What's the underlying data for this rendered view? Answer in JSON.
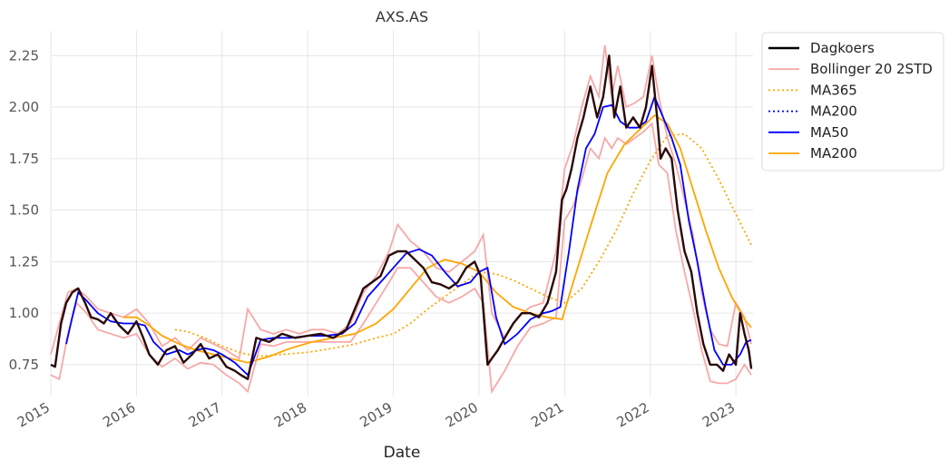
{
  "chart_data": {
    "type": "line",
    "title": "AXS.AS",
    "xlabel": "Date",
    "ylabel": "",
    "xlim": [
      2015.0,
      2023.2
    ],
    "ylim": [
      0.6,
      2.37
    ],
    "x_ticks": [
      {
        "value": 2015,
        "label": "2015"
      },
      {
        "value": 2016,
        "label": "2016"
      },
      {
        "value": 2017,
        "label": "2017"
      },
      {
        "value": 2018,
        "label": "2018"
      },
      {
        "value": 2019,
        "label": "2019"
      },
      {
        "value": 2020,
        "label": "2020"
      },
      {
        "value": 2021,
        "label": "2021"
      },
      {
        "value": 2022,
        "label": "2022"
      },
      {
        "value": 2023,
        "label": "2023"
      }
    ],
    "y_ticks": [
      {
        "value": 0.75,
        "label": "0.75"
      },
      {
        "value": 1.0,
        "label": "1.00"
      },
      {
        "value": 1.25,
        "label": "1.25"
      },
      {
        "value": 1.5,
        "label": "1.50"
      },
      {
        "value": 1.75,
        "label": "1.75"
      },
      {
        "value": 2.0,
        "label": "2.00"
      },
      {
        "value": 2.25,
        "label": "2.25"
      }
    ],
    "grid": true,
    "legend_position": "outside top-right",
    "series": [
      {
        "name": "Dagkoers",
        "color": "#000000",
        "style": "solid",
        "key": "close",
        "x": [
          2015.0,
          2015.05,
          2015.12,
          2015.18,
          2015.25,
          2015.32,
          2015.4,
          2015.47,
          2015.55,
          2015.62,
          2015.7,
          2015.8,
          2015.9,
          2016.0,
          2016.08,
          2016.15,
          2016.25,
          2016.35,
          2016.45,
          2016.55,
          2016.65,
          2016.75,
          2016.85,
          2016.95,
          2017.05,
          2017.15,
          2017.22,
          2017.3,
          2017.4,
          2017.55,
          2017.7,
          2017.85,
          2018.0,
          2018.15,
          2018.3,
          2018.45,
          2018.55,
          2018.65,
          2018.75,
          2018.85,
          2018.95,
          2019.05,
          2019.15,
          2019.25,
          2019.35,
          2019.45,
          2019.55,
          2019.65,
          2019.75,
          2019.85,
          2019.95,
          2020.02,
          2020.1,
          2020.15,
          2020.22,
          2020.3,
          2020.4,
          2020.5,
          2020.6,
          2020.7,
          2020.8,
          2020.9,
          2020.97,
          2021.02,
          2021.08,
          2021.15,
          2021.22,
          2021.3,
          2021.38,
          2021.45,
          2021.52,
          2021.58,
          2021.65,
          2021.72,
          2021.8,
          2021.88,
          2021.95,
          2022.02,
          2022.08,
          2022.12,
          2022.18,
          2022.25,
          2022.32,
          2022.4,
          2022.48,
          2022.55,
          2022.62,
          2022.7,
          2022.78,
          2022.85,
          2022.92,
          2023.0,
          2023.05,
          2023.1,
          2023.15,
          2023.18
        ],
        "values": [
          0.75,
          0.74,
          0.95,
          1.05,
          1.1,
          1.12,
          1.05,
          0.98,
          0.97,
          0.95,
          1.0,
          0.94,
          0.9,
          0.96,
          0.88,
          0.8,
          0.75,
          0.82,
          0.84,
          0.76,
          0.8,
          0.85,
          0.78,
          0.8,
          0.74,
          0.72,
          0.7,
          0.68,
          0.88,
          0.86,
          0.9,
          0.88,
          0.89,
          0.9,
          0.88,
          0.92,
          1.02,
          1.12,
          1.15,
          1.18,
          1.28,
          1.3,
          1.3,
          1.26,
          1.22,
          1.15,
          1.14,
          1.12,
          1.15,
          1.22,
          1.25,
          1.18,
          0.75,
          0.78,
          0.82,
          0.88,
          0.95,
          1.0,
          1.0,
          0.98,
          1.05,
          1.2,
          1.55,
          1.6,
          1.7,
          1.85,
          1.95,
          2.1,
          1.95,
          2.05,
          2.25,
          1.95,
          2.1,
          1.9,
          1.95,
          1.9,
          2.0,
          2.2,
          1.95,
          1.75,
          1.8,
          1.75,
          1.5,
          1.3,
          1.2,
          1.0,
          0.85,
          0.75,
          0.75,
          0.72,
          0.8,
          0.75,
          1.0,
          0.9,
          0.82,
          0.73
        ]
      },
      {
        "name": "Bollinger 20 2STD",
        "color": "#f7a8a8",
        "style": "solid",
        "key": "bollinger",
        "upper": {
          "x": [
            2015.0,
            2015.1,
            2015.2,
            2015.3,
            2015.42,
            2015.55,
            2015.7,
            2015.85,
            2016.0,
            2016.15,
            2016.3,
            2016.45,
            2016.6,
            2016.75,
            2016.9,
            2017.05,
            2017.2,
            2017.3,
            2017.45,
            2017.6,
            2017.75,
            2017.9,
            2018.05,
            2018.2,
            2018.35,
            2018.5,
            2018.65,
            2018.8,
            2018.95,
            2019.05,
            2019.2,
            2019.35,
            2019.5,
            2019.65,
            2019.8,
            2019.95,
            2020.05,
            2020.15,
            2020.3,
            2020.45,
            2020.6,
            2020.75,
            2020.9,
            2021.0,
            2021.1,
            2021.2,
            2021.3,
            2021.4,
            2021.47,
            2021.55,
            2021.62,
            2021.72,
            2021.82,
            2021.92,
            2022.02,
            2022.1,
            2022.2,
            2022.3,
            2022.4,
            2022.5,
            2022.6,
            2022.7,
            2022.8,
            2022.9,
            2023.0,
            2023.1,
            2023.18
          ],
          "values": [
            0.8,
            0.95,
            1.1,
            1.12,
            1.08,
            1.02,
            1.0,
            0.98,
            1.02,
            0.95,
            0.84,
            0.88,
            0.82,
            0.88,
            0.85,
            0.82,
            0.78,
            1.02,
            0.92,
            0.9,
            0.92,
            0.9,
            0.92,
            0.92,
            0.9,
            0.95,
            1.1,
            1.18,
            1.3,
            1.43,
            1.35,
            1.3,
            1.22,
            1.2,
            1.25,
            1.3,
            1.38,
            1.0,
            0.88,
            0.98,
            1.03,
            1.05,
            1.3,
            1.7,
            1.82,
            2.0,
            2.15,
            2.05,
            2.3,
            2.05,
            2.2,
            2.0,
            2.02,
            2.05,
            2.25,
            2.05,
            1.85,
            1.72,
            1.55,
            1.38,
            1.1,
            0.92,
            0.85,
            0.84,
            1.05,
            0.98,
            0.85
          ]
        },
        "lower": {
          "x": [
            2015.0,
            2015.1,
            2015.2,
            2015.3,
            2015.42,
            2015.55,
            2015.7,
            2015.85,
            2016.0,
            2016.15,
            2016.3,
            2016.45,
            2016.6,
            2016.75,
            2016.9,
            2017.05,
            2017.2,
            2017.3,
            2017.45,
            2017.6,
            2017.75,
            2017.9,
            2018.05,
            2018.2,
            2018.35,
            2018.5,
            2018.65,
            2018.8,
            2018.95,
            2019.05,
            2019.2,
            2019.35,
            2019.5,
            2019.65,
            2019.8,
            2019.95,
            2020.05,
            2020.15,
            2020.3,
            2020.45,
            2020.6,
            2020.75,
            2020.9,
            2021.0,
            2021.1,
            2021.2,
            2021.3,
            2021.4,
            2021.47,
            2021.55,
            2021.62,
            2021.72,
            2021.82,
            2021.92,
            2022.02,
            2022.1,
            2022.2,
            2022.3,
            2022.4,
            2022.5,
            2022.6,
            2022.7,
            2022.8,
            2022.9,
            2023.0,
            2023.1,
            2023.18
          ],
          "values": [
            0.7,
            0.68,
            0.9,
            1.05,
            1.0,
            0.92,
            0.9,
            0.88,
            0.9,
            0.8,
            0.74,
            0.78,
            0.73,
            0.76,
            0.75,
            0.7,
            0.66,
            0.62,
            0.85,
            0.84,
            0.86,
            0.86,
            0.86,
            0.86,
            0.86,
            0.86,
            0.95,
            1.05,
            1.15,
            1.22,
            1.22,
            1.15,
            1.08,
            1.05,
            1.08,
            1.12,
            1.05,
            0.62,
            0.72,
            0.84,
            0.93,
            0.95,
            0.98,
            1.45,
            1.52,
            1.65,
            1.8,
            1.75,
            1.85,
            1.8,
            1.85,
            1.82,
            1.85,
            1.88,
            1.92,
            1.72,
            1.68,
            1.4,
            1.2,
            1.02,
            0.82,
            0.67,
            0.66,
            0.66,
            0.68,
            0.75,
            0.7
          ]
        }
      },
      {
        "name": "MA365",
        "color": "#ffa500",
        "style": "dotted",
        "key": "ma365",
        "x": [
          2016.45,
          2016.6,
          2016.8,
          2017.0,
          2017.2,
          2017.4,
          2017.7,
          2018.0,
          2018.3,
          2018.55,
          2018.8,
          2019.0,
          2019.2,
          2019.4,
          2019.6,
          2019.8,
          2020.0,
          2020.2,
          2020.4,
          2020.6,
          2020.8,
          2021.0,
          2021.2,
          2021.4,
          2021.6,
          2021.8,
          2022.0,
          2022.2,
          2022.4,
          2022.6,
          2022.8,
          2023.0,
          2023.18
        ],
        "values": [
          0.92,
          0.91,
          0.88,
          0.84,
          0.81,
          0.79,
          0.8,
          0.81,
          0.83,
          0.85,
          0.88,
          0.9,
          0.95,
          1.02,
          1.08,
          1.14,
          1.2,
          1.19,
          1.16,
          1.12,
          1.08,
          1.05,
          1.12,
          1.25,
          1.4,
          1.58,
          1.74,
          1.86,
          1.87,
          1.8,
          1.65,
          1.48,
          1.33
        ]
      },
      {
        "name": "MA200",
        "color": "#0000ff",
        "style": "dotted",
        "key": "ma200_dotted",
        "x": [],
        "values": []
      },
      {
        "name": "MA50",
        "color": "#0000ff",
        "style": "solid",
        "key": "ma50",
        "x": [
          2015.18,
          2015.25,
          2015.32,
          2015.42,
          2015.55,
          2015.7,
          2015.85,
          2016.0,
          2016.1,
          2016.2,
          2016.35,
          2016.5,
          2016.6,
          2016.7,
          2016.8,
          2016.9,
          2017.0,
          2017.15,
          2017.3,
          2017.45,
          2017.6,
          2017.8,
          2018.0,
          2018.2,
          2018.4,
          2018.55,
          2018.7,
          2018.85,
          2019.0,
          2019.15,
          2019.3,
          2019.45,
          2019.6,
          2019.75,
          2019.9,
          2020.0,
          2020.1,
          2020.2,
          2020.3,
          2020.45,
          2020.6,
          2020.75,
          2020.85,
          2020.95,
          2021.05,
          2021.15,
          2021.25,
          2021.35,
          2021.45,
          2021.55,
          2021.65,
          2021.75,
          2021.85,
          2021.95,
          2022.05,
          2022.15,
          2022.25,
          2022.35,
          2022.45,
          2022.55,
          2022.65,
          2022.75,
          2022.85,
          2022.95,
          2023.05,
          2023.12,
          2023.18
        ],
        "values": [
          0.85,
          0.98,
          1.1,
          1.06,
          1.0,
          0.96,
          0.95,
          0.95,
          0.94,
          0.86,
          0.8,
          0.82,
          0.8,
          0.82,
          0.83,
          0.82,
          0.8,
          0.76,
          0.7,
          0.87,
          0.88,
          0.88,
          0.89,
          0.89,
          0.9,
          0.95,
          1.08,
          1.15,
          1.22,
          1.29,
          1.31,
          1.28,
          1.2,
          1.13,
          1.15,
          1.2,
          1.22,
          0.98,
          0.85,
          0.9,
          0.97,
          1.0,
          1.01,
          1.03,
          1.3,
          1.6,
          1.8,
          1.87,
          2.0,
          2.01,
          1.93,
          1.9,
          1.9,
          1.93,
          2.05,
          1.95,
          1.85,
          1.72,
          1.45,
          1.25,
          1.02,
          0.82,
          0.75,
          0.75,
          0.8,
          0.86,
          0.87
        ]
      },
      {
        "name": "MA200",
        "color": "#ffa500",
        "style": "solid",
        "key": "ma200",
        "x": [
          2015.85,
          2016.0,
          2016.15,
          2016.3,
          2016.5,
          2016.7,
          2016.9,
          2017.1,
          2017.3,
          2017.55,
          2017.8,
          2018.05,
          2018.3,
          2018.55,
          2018.8,
          2019.0,
          2019.2,
          2019.4,
          2019.6,
          2019.8,
          2020.0,
          2020.2,
          2020.4,
          2020.6,
          2020.8,
          2020.97,
          2021.1,
          2021.3,
          2021.5,
          2021.7,
          2021.9,
          2022.05,
          2022.2,
          2022.35,
          2022.5,
          2022.65,
          2022.8,
          2022.95,
          2023.1,
          2023.18
        ],
        "values": [
          0.98,
          0.98,
          0.94,
          0.89,
          0.85,
          0.82,
          0.8,
          0.78,
          0.76,
          0.79,
          0.83,
          0.86,
          0.88,
          0.9,
          0.95,
          1.02,
          1.12,
          1.22,
          1.26,
          1.24,
          1.2,
          1.1,
          1.03,
          1.0,
          0.98,
          0.97,
          1.15,
          1.42,
          1.68,
          1.82,
          1.9,
          1.96,
          1.92,
          1.8,
          1.6,
          1.4,
          1.22,
          1.08,
          0.97,
          0.93
        ]
      }
    ]
  }
}
